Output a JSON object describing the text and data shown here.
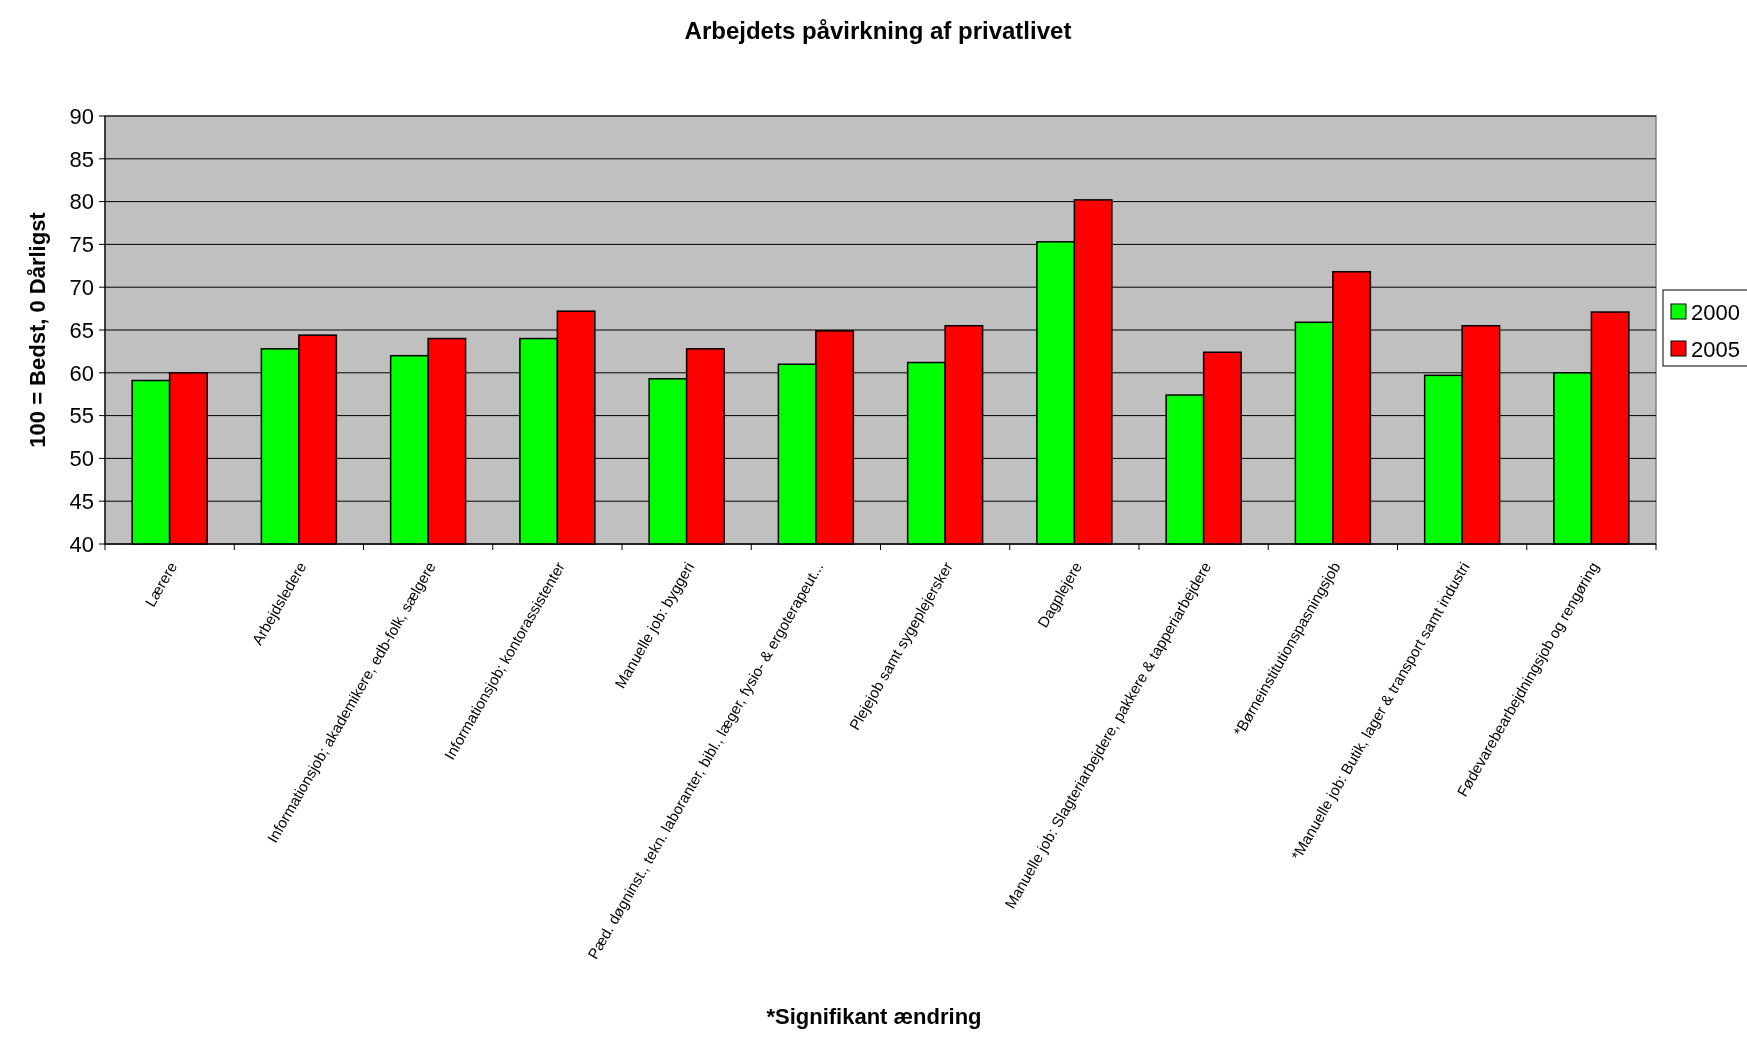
{
  "chart_data": {
    "type": "bar",
    "title": "Arbejdets påvirkning af privatlivet",
    "ylabel": "100 = Bedst, 0 Dårligst",
    "categories": [
      "Lærere",
      "Arbejdsledere",
      "Informationsjob; akademikere, edb-folk, sælgere",
      "Informationsjob; kontorassistenter",
      "Manuelle job: byggeri",
      "Pæd. døgninst., tekn. laboranter, bibl., læger, fysio- & ergoterapeut...",
      "Plejejob samt sygeplejersker",
      "Dagplejere",
      "Manuelle job: Slagteriarbejdere, pakkere & tapperiarbejdere",
      "*Børneinstitutionspasningsjob",
      "*Manuelle job: Butik, lager & transport samt industri",
      "Fødevarebearbejdningsjob og rengøring"
    ],
    "series": [
      {
        "name": "2000",
        "color": "#00ff00",
        "values": [
          59.1,
          62.8,
          62.0,
          64.0,
          59.3,
          61.0,
          61.2,
          75.3,
          57.4,
          65.9,
          59.7,
          60.0
        ]
      },
      {
        "name": "2005",
        "color": "#ff0000",
        "values": [
          60.0,
          64.4,
          64.0,
          67.2,
          62.8,
          64.9,
          65.5,
          80.2,
          62.4,
          71.8,
          65.5,
          67.1
        ]
      }
    ],
    "ylim": [
      40,
      90
    ],
    "yticks": [
      40,
      45,
      50,
      55,
      60,
      65,
      70,
      75,
      80,
      85,
      90
    ],
    "grid": "y",
    "legend": "right",
    "annotations": [
      "*Signifikant ændring"
    ]
  }
}
